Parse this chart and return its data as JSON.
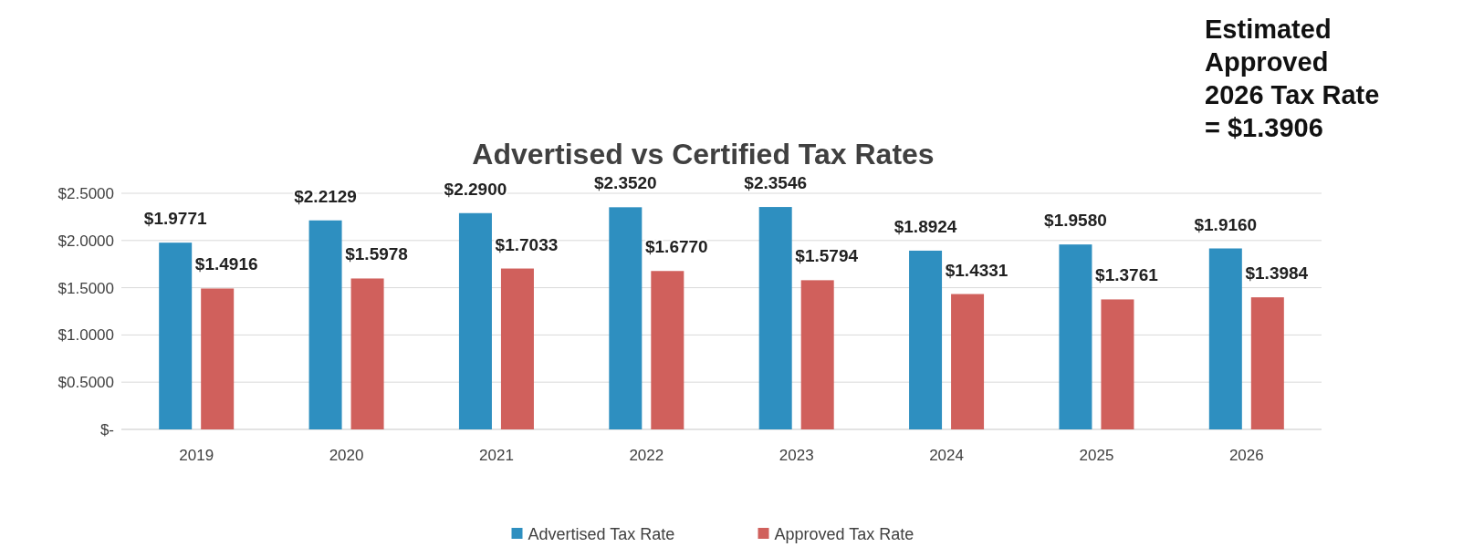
{
  "chart_data": {
    "type": "bar",
    "title": "Advertised vs Certified Tax Rates",
    "categories": [
      "2019",
      "2020",
      "2021",
      "2022",
      "2023",
      "2024",
      "2025",
      "2026"
    ],
    "series": [
      {
        "name": "Advertised Tax Rate",
        "color": "#2e8fc0",
        "values": [
          1.9771,
          2.2129,
          2.29,
          2.352,
          2.3546,
          1.8924,
          1.958,
          1.916
        ],
        "value_labels": [
          "$1.9771",
          "$2.2129",
          "$2.2900",
          "$2.3520",
          "$2.3546",
          "$1.8924",
          "$1.9580",
          "$1.9160"
        ]
      },
      {
        "name": "Approved Tax Rate",
        "color": "#d0605c",
        "values": [
          1.4916,
          1.5978,
          1.7033,
          1.677,
          1.5794,
          1.4331,
          1.3761,
          1.3984
        ],
        "value_labels": [
          "$1.4916",
          "$1.5978",
          "$1.7033",
          "$1.6770",
          "$1.5794",
          "$1.4331",
          "$1.3761",
          "$1.3984"
        ]
      }
    ],
    "ylim": [
      0,
      2.5
    ],
    "yticks": [
      {
        "value": 0,
        "label": "$-"
      },
      {
        "value": 0.5,
        "label": "$0.5000"
      },
      {
        "value": 1,
        "label": "$1.0000"
      },
      {
        "value": 1.5,
        "label": "$1.5000"
      },
      {
        "value": 2,
        "label": "$2.0000"
      },
      {
        "value": 2.5,
        "label": "$2.5000"
      }
    ],
    "grid": "y",
    "legend": "bottom",
    "annotations": [
      "Estimated Approved 2026 Tax Rate = $1.3906"
    ]
  }
}
